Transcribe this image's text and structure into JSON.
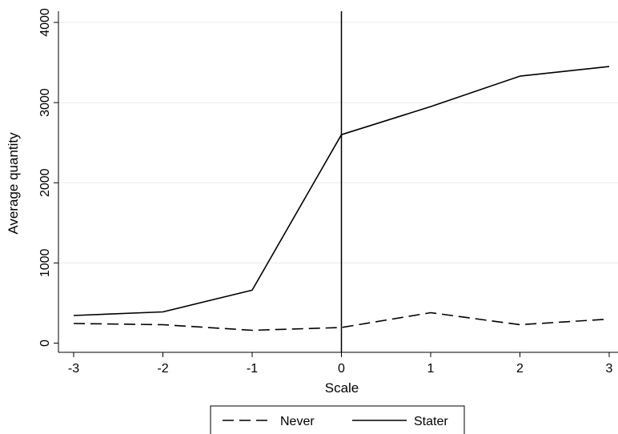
{
  "chart_data": {
    "type": "line",
    "title": "",
    "xlabel": "Scale",
    "ylabel": "Average quantity",
    "x": [
      -3,
      -2,
      -1,
      0,
      1,
      2,
      3
    ],
    "xlim": [
      -3,
      3
    ],
    "ylim": [
      -100,
      4100
    ],
    "xticks": [
      -3,
      -2,
      -1,
      0,
      1,
      2,
      3
    ],
    "yticks": [
      0,
      1000,
      2000,
      3000,
      4000
    ],
    "xtick_labels": [
      "-3",
      "-2",
      "-1",
      "0",
      "1",
      "2",
      "3"
    ],
    "ytick_labels": [
      "0",
      "1000",
      "2000",
      "3000",
      "4000"
    ],
    "grid": "horizontal",
    "vertical_reference_line_at": 0,
    "legend_position": "bottom",
    "series": [
      {
        "name": "Never",
        "style": "dashed",
        "values": [
          245,
          230,
          160,
          195,
          380,
          230,
          300
        ]
      },
      {
        "name": "Stater",
        "style": "solid",
        "values": [
          345,
          390,
          660,
          2600,
          2950,
          3330,
          3450
        ]
      }
    ],
    "colors": {
      "line": "#000000",
      "grid": "#eaeaea",
      "axis": "#000000"
    }
  }
}
